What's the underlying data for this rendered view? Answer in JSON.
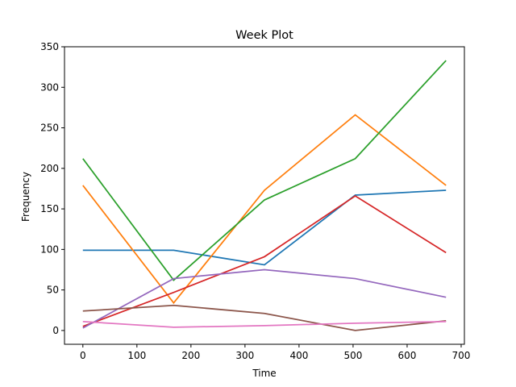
{
  "chart_data": {
    "type": "line",
    "title": "Week Plot",
    "xlabel": "Time",
    "ylabel": "Frequency",
    "xlim": [
      -34,
      706
    ],
    "ylim": [
      -17,
      350
    ],
    "xticks": [
      0,
      100,
      200,
      300,
      400,
      500,
      600,
      700
    ],
    "yticks": [
      0,
      50,
      100,
      150,
      200,
      250,
      300,
      350
    ],
    "grid": false,
    "legend": "none",
    "x": [
      0,
      168,
      336,
      504,
      672
    ],
    "series": [
      {
        "color": "#1f77b4",
        "values": [
          99,
          99,
          81,
          167,
          173
        ]
      },
      {
        "color": "#ff7f0e",
        "values": [
          179,
          34,
          173,
          266,
          179
        ]
      },
      {
        "color": "#2ca02c",
        "values": [
          212,
          62,
          161,
          212,
          333
        ]
      },
      {
        "color": "#d62728",
        "values": [
          5,
          47,
          91,
          166,
          96
        ]
      },
      {
        "color": "#9467bd",
        "values": [
          3,
          64,
          75,
          64,
          41
        ]
      },
      {
        "color": "#8c564b",
        "values": [
          24,
          31,
          21,
          0,
          12
        ]
      },
      {
        "color": "#e377c2",
        "values": [
          11,
          4,
          6,
          9,
          11
        ]
      }
    ]
  }
}
